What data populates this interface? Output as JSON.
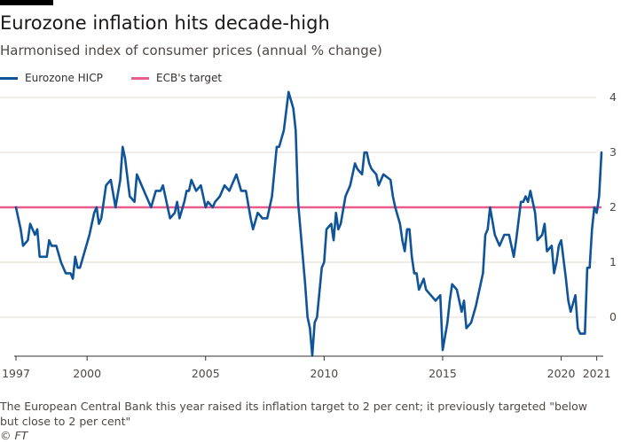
{
  "title": "Eurozone inflation hits decade-high",
  "subtitle": "Harmonised index of consumer prices (annual % change)",
  "note": "The European Central Bank this year raised its inflation target to 2 per cent; it previously targeted \"below but close to 2 per cent\"",
  "source": "© FT",
  "colors": {
    "series": "#0f5499",
    "target": "#e95d8c",
    "grid": "#e6d9ce",
    "axis": "#33302e"
  },
  "chart_data": {
    "type": "line",
    "title": "Eurozone inflation hits decade-high",
    "subtitle": "Harmonised index of consumer prices (annual % change)",
    "xlabel": "",
    "ylabel": "",
    "legend_position": "top-left",
    "grid": true,
    "xlim": [
      1997.0,
      2021.7
    ],
    "ylim": [
      -0.6,
      4.2
    ],
    "x_ticks": [
      {
        "value": 1997.0,
        "label": "1997"
      },
      {
        "value": 2000.0,
        "label": "2000"
      },
      {
        "value": 2005.0,
        "label": "2005"
      },
      {
        "value": 2010.0,
        "label": "2010"
      },
      {
        "value": 2015.0,
        "label": "2015"
      },
      {
        "value": 2020.0,
        "label": "2020"
      },
      {
        "value": 2021.5,
        "label": "2021"
      }
    ],
    "y_ticks": [
      {
        "value": 0,
        "label": "0"
      },
      {
        "value": 1,
        "label": "1"
      },
      {
        "value": 2,
        "label": "2"
      },
      {
        "value": 3,
        "label": "3"
      },
      {
        "value": 4,
        "label": "4"
      }
    ],
    "series": [
      {
        "name": "Eurozone HICP",
        "color": "#0f5499",
        "points": [
          [
            1997.0,
            2.0
          ],
          [
            1997.2,
            1.6
          ],
          [
            1997.3,
            1.3
          ],
          [
            1997.5,
            1.4
          ],
          [
            1997.6,
            1.7
          ],
          [
            1997.8,
            1.5
          ],
          [
            1997.9,
            1.6
          ],
          [
            1998.0,
            1.1
          ],
          [
            1998.3,
            1.1
          ],
          [
            1998.4,
            1.4
          ],
          [
            1998.5,
            1.3
          ],
          [
            1998.7,
            1.3
          ],
          [
            1998.9,
            1.0
          ],
          [
            1999.1,
            0.8
          ],
          [
            1999.3,
            0.8
          ],
          [
            1999.4,
            0.7
          ],
          [
            1999.5,
            1.1
          ],
          [
            1999.6,
            0.9
          ],
          [
            1999.7,
            0.9
          ],
          [
            1999.9,
            1.2
          ],
          [
            2000.1,
            1.5
          ],
          [
            2000.3,
            1.9
          ],
          [
            2000.4,
            2.0
          ],
          [
            2000.5,
            1.7
          ],
          [
            2000.6,
            1.8
          ],
          [
            2000.8,
            2.4
          ],
          [
            2001.0,
            2.5
          ],
          [
            2001.2,
            2.0
          ],
          [
            2001.4,
            2.5
          ],
          [
            2001.5,
            3.1
          ],
          [
            2001.6,
            2.9
          ],
          [
            2001.8,
            2.2
          ],
          [
            2002.0,
            2.1
          ],
          [
            2002.1,
            2.6
          ],
          [
            2002.3,
            2.4
          ],
          [
            2002.5,
            2.2
          ],
          [
            2002.7,
            2.0
          ],
          [
            2002.9,
            2.3
          ],
          [
            2003.1,
            2.3
          ],
          [
            2003.2,
            2.4
          ],
          [
            2003.3,
            2.2
          ],
          [
            2003.5,
            1.8
          ],
          [
            2003.7,
            1.9
          ],
          [
            2003.8,
            2.1
          ],
          [
            2003.9,
            1.8
          ],
          [
            2004.1,
            2.1
          ],
          [
            2004.2,
            2.3
          ],
          [
            2004.3,
            2.3
          ],
          [
            2004.4,
            2.5
          ],
          [
            2004.6,
            2.3
          ],
          [
            2004.8,
            2.4
          ],
          [
            2005.0,
            2.0
          ],
          [
            2005.1,
            2.1
          ],
          [
            2005.3,
            2.0
          ],
          [
            2005.4,
            2.1
          ],
          [
            2005.6,
            2.2
          ],
          [
            2005.8,
            2.4
          ],
          [
            2006.0,
            2.3
          ],
          [
            2006.3,
            2.6
          ],
          [
            2006.5,
            2.3
          ],
          [
            2006.7,
            2.3
          ],
          [
            2006.9,
            1.8
          ],
          [
            2007.0,
            1.6
          ],
          [
            2007.2,
            1.9
          ],
          [
            2007.4,
            1.8
          ],
          [
            2007.6,
            1.8
          ],
          [
            2007.8,
            2.2
          ],
          [
            2008.0,
            3.1
          ],
          [
            2008.1,
            3.1
          ],
          [
            2008.3,
            3.4
          ],
          [
            2008.5,
            4.1
          ],
          [
            2008.7,
            3.8
          ],
          [
            2008.8,
            3.4
          ],
          [
            2008.9,
            2.1
          ],
          [
            2009.0,
            1.6
          ],
          [
            2009.1,
            1.1
          ],
          [
            2009.2,
            0.6
          ],
          [
            2009.3,
            0.0
          ],
          [
            2009.4,
            -0.2
          ],
          [
            2009.5,
            -0.7
          ],
          [
            2009.6,
            -0.1
          ],
          [
            2009.7,
            0.0
          ],
          [
            2009.9,
            0.9
          ],
          [
            2010.0,
            1.0
          ],
          [
            2010.1,
            1.6
          ],
          [
            2010.3,
            1.7
          ],
          [
            2010.4,
            1.4
          ],
          [
            2010.5,
            1.9
          ],
          [
            2010.6,
            1.6
          ],
          [
            2010.7,
            1.7
          ],
          [
            2010.9,
            2.2
          ],
          [
            2011.1,
            2.4
          ],
          [
            2011.3,
            2.8
          ],
          [
            2011.4,
            2.7
          ],
          [
            2011.6,
            2.6
          ],
          [
            2011.7,
            3.0
          ],
          [
            2011.8,
            3.0
          ],
          [
            2011.9,
            2.8
          ],
          [
            2012.0,
            2.7
          ],
          [
            2012.2,
            2.6
          ],
          [
            2012.3,
            2.4
          ],
          [
            2012.5,
            2.6
          ],
          [
            2012.8,
            2.5
          ],
          [
            2012.9,
            2.2
          ],
          [
            2013.0,
            2.0
          ],
          [
            2013.2,
            1.7
          ],
          [
            2013.3,
            1.4
          ],
          [
            2013.4,
            1.2
          ],
          [
            2013.5,
            1.6
          ],
          [
            2013.6,
            1.6
          ],
          [
            2013.7,
            1.1
          ],
          [
            2013.8,
            0.8
          ],
          [
            2013.9,
            0.8
          ],
          [
            2014.0,
            0.5
          ],
          [
            2014.2,
            0.7
          ],
          [
            2014.3,
            0.5
          ],
          [
            2014.5,
            0.4
          ],
          [
            2014.7,
            0.3
          ],
          [
            2014.9,
            0.4
          ],
          [
            2015.0,
            -0.6
          ],
          [
            2015.2,
            -0.1
          ],
          [
            2015.3,
            0.3
          ],
          [
            2015.4,
            0.6
          ],
          [
            2015.6,
            0.5
          ],
          [
            2015.7,
            0.3
          ],
          [
            2015.8,
            0.1
          ],
          [
            2015.9,
            0.3
          ],
          [
            2016.0,
            -0.2
          ],
          [
            2016.2,
            -0.1
          ],
          [
            2016.4,
            0.2
          ],
          [
            2016.6,
            0.6
          ],
          [
            2016.7,
            0.8
          ],
          [
            2016.8,
            1.5
          ],
          [
            2016.9,
            1.6
          ],
          [
            2017.0,
            2.0
          ],
          [
            2017.2,
            1.5
          ],
          [
            2017.4,
            1.3
          ],
          [
            2017.6,
            1.5
          ],
          [
            2017.8,
            1.5
          ],
          [
            2018.0,
            1.1
          ],
          [
            2018.1,
            1.4
          ],
          [
            2018.3,
            2.1
          ],
          [
            2018.4,
            2.1
          ],
          [
            2018.5,
            2.2
          ],
          [
            2018.6,
            2.1
          ],
          [
            2018.7,
            2.3
          ],
          [
            2018.9,
            1.9
          ],
          [
            2019.0,
            1.4
          ],
          [
            2019.2,
            1.5
          ],
          [
            2019.3,
            1.7
          ],
          [
            2019.4,
            1.2
          ],
          [
            2019.6,
            1.3
          ],
          [
            2019.7,
            0.8
          ],
          [
            2019.8,
            1.0
          ],
          [
            2019.9,
            1.3
          ],
          [
            2020.0,
            1.4
          ],
          [
            2020.2,
            0.7
          ],
          [
            2020.3,
            0.3
          ],
          [
            2020.4,
            0.1
          ],
          [
            2020.6,
            0.4
          ],
          [
            2020.7,
            -0.2
          ],
          [
            2020.8,
            -0.3
          ],
          [
            2021.0,
            -0.3
          ],
          [
            2021.1,
            0.9
          ],
          [
            2021.2,
            0.9
          ],
          [
            2021.3,
            1.6
          ],
          [
            2021.4,
            2.0
          ],
          [
            2021.5,
            1.9
          ],
          [
            2021.6,
            2.2
          ],
          [
            2021.7,
            3.0
          ]
        ]
      },
      {
        "name": "ECB's target",
        "color": "#e95d8c",
        "points": [
          [
            1997.0,
            2.0
          ],
          [
            2021.7,
            2.0
          ]
        ]
      }
    ]
  }
}
